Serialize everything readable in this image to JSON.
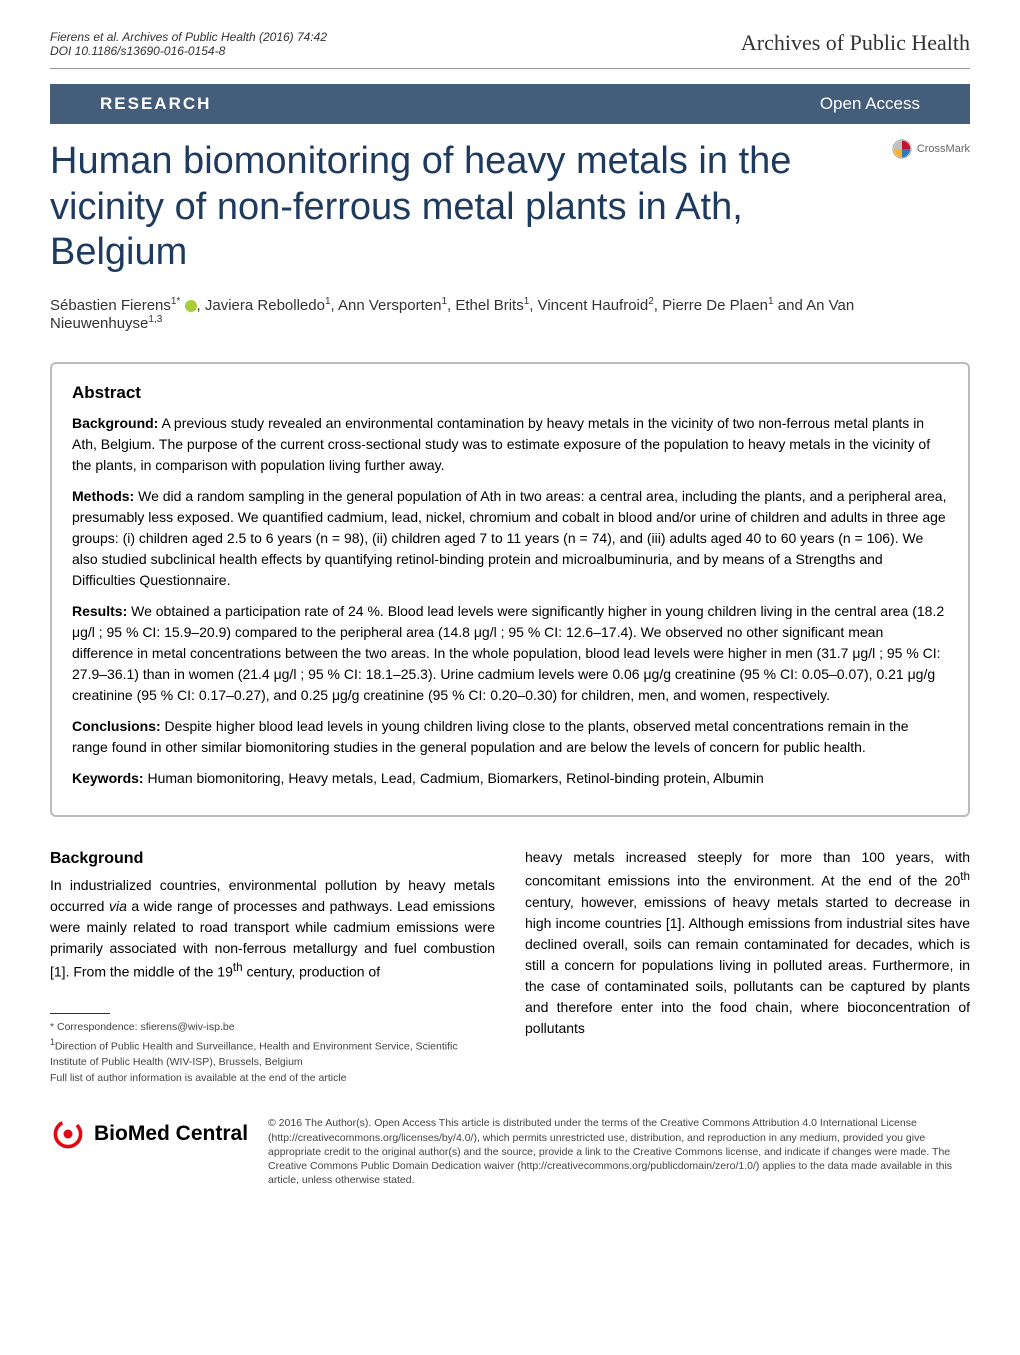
{
  "header": {
    "citation": "Fierens et al. Archives of Public Health  (2016) 74:42",
    "doi": "DOI 10.1186/s13690-016-0154-8",
    "journal": "Archives of Public Health"
  },
  "banner": {
    "left": "RESEARCH",
    "right": "Open Access"
  },
  "crossmark_label": "CrossMark",
  "title": "Human biomonitoring of heavy metals in the vicinity of non-ferrous metal plants in Ath, Belgium",
  "authors_html": "Sébastien Fierens<sup>1*</sup> <span class=\"orcid-icon\"></span>, Javiera Rebolledo<sup>1</sup>, Ann Versporten<sup>1</sup>, Ethel Brits<sup>1</sup>, Vincent Haufroid<sup>2</sup>, Pierre De Plaen<sup>1</sup> and An Van Nieuwenhuyse<sup>1,3</sup>",
  "abstract": {
    "heading": "Abstract",
    "background_label": "Background:",
    "background_text": " A previous study revealed an environmental contamination by heavy metals in the vicinity of two non-ferrous metal plants in Ath, Belgium. The purpose of the current cross-sectional study was to estimate exposure of the population to heavy metals in the vicinity of the plants, in comparison with population living further away.",
    "methods_label": "Methods:",
    "methods_text": " We did a random sampling in the general population of Ath in two areas: a central area, including the plants, and a peripheral area, presumably less exposed. We quantified cadmium, lead, nickel, chromium and cobalt in blood and/or urine of children and adults in three age groups: (i) children aged 2.5 to 6 years (n = 98), (ii) children aged 7 to 11 years (n = 74), and (iii) adults aged 40 to 60 years (n = 106). We also studied subclinical health effects by quantifying retinol-binding protein and microalbuminuria, and by means of a Strengths and Difficulties Questionnaire.",
    "results_label": "Results:",
    "results_text": " We obtained a participation rate of 24 %. Blood lead levels were significantly higher in young children living in the central area (18.2 μg/l ; 95 % CI: 15.9–20.9) compared to the peripheral area (14.8 μg/l ; 95 % CI: 12.6–17.4). We observed no other significant mean difference in metal concentrations between the two areas. In the whole population, blood lead levels were higher in men (31.7 μg/l ; 95 % CI: 27.9–36.1) than in women (21.4 μg/l ; 95 % CI: 18.1–25.3). Urine cadmium levels were 0.06 μg/g creatinine (95 % CI: 0.05–0.07), 0.21 μg/g creatinine (95 % CI: 0.17–0.27), and 0.25 μg/g creatinine (95 % CI: 0.20–0.30) for children, men, and women, respectively.",
    "conclusions_label": "Conclusions:",
    "conclusions_text": " Despite higher blood lead levels in young children living close to the plants, observed metal concentrations remain in the range found in other similar biomonitoring studies in the general population and are below the levels of concern for public health.",
    "keywords_label": "Keywords:",
    "keywords_text": " Human biomonitoring, Heavy metals, Lead, Cadmium, Biomarkers, Retinol-binding protein, Albumin"
  },
  "background": {
    "heading": "Background",
    "left_col": "In industrialized countries, environmental pollution by heavy metals occurred via a wide range of processes and pathways. Lead emissions were mainly related to road transport while cadmium emissions were primarily associated with non-ferrous metallurgy and fuel combustion [1]. From the middle of the 19<sup>th</sup> century, production of",
    "right_col": "heavy metals increased steeply for more than 100 years, with concomitant emissions into the environment. At the end of the 20<sup>th</sup> century, however, emissions of heavy metals started to decrease in high income countries [1]. Although emissions from industrial sites have declined overall, soils can remain contaminated for decades, which is still a concern for populations living in polluted areas. Furthermore, in the case of contaminated soils, pollutants can be captured by plants and therefore enter into the food chain, where bioconcentration of pollutants"
  },
  "footnote": {
    "correspondence": "* Correspondence: sfierens@wiv-isp.be",
    "affil1": "1Direction of Public Health and Surveillance, Health and Environment Service, Scientific Institute of Public Health (WIV-ISP), Brussels, Belgium",
    "fulllist": "Full list of author information is available at the end of the article"
  },
  "footer": {
    "logo_text": "BioMed Central",
    "license": "© 2016 The Author(s). Open Access This article is distributed under the terms of the Creative Commons Attribution 4.0 International License (http://creativecommons.org/licenses/by/4.0/), which permits unrestricted use, distribution, and reproduction in any medium, provided you give appropriate credit to the original author(s) and the source, provide a link to the Creative Commons license, and indicate if changes were made. The Creative Commons Public Domain Dedication waiver (http://creativecommons.org/publicdomain/zero/1.0/) applies to the data made available in this article, unless otherwise stated."
  },
  "colors": {
    "banner_bg": "#435d7b",
    "title_color": "#1e3a5f",
    "orcid": "#a6ce39",
    "crossmark_red": "#c8102e",
    "crossmark_yellow": "#f9b233",
    "crossmark_blue": "#2b7bb9",
    "crossmark_gray": "#c0c0c0",
    "bmc_ring": "#e30613"
  }
}
